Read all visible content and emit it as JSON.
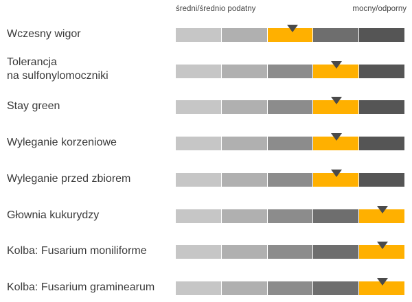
{
  "scale": {
    "left_label": "średni/średnio podatny",
    "right_label": "mocny/odporny"
  },
  "colors": {
    "segments": [
      "#c6c6c6",
      "#b0b0b0",
      "#8c8c8c",
      "#6e6e6e",
      "#555555"
    ],
    "highlight": "#ffb000",
    "marker": "#4a4a4a"
  },
  "chart_data": {
    "type": "table",
    "levels": 5,
    "rows": [
      {
        "label_lines": [
          "Wczesny wigor"
        ],
        "level": 3,
        "marker_position": 0.55
      },
      {
        "label_lines": [
          "Tolerancja",
          "na sulfonylomoczniki"
        ],
        "level": 4,
        "marker_position": 0.5
      },
      {
        "label_lines": [
          "Stay green"
        ],
        "level": 4,
        "marker_position": 0.5
      },
      {
        "label_lines": [
          "Wyleganie korzeniowe"
        ],
        "level": 4,
        "marker_position": 0.5
      },
      {
        "label_lines": [
          "Wyleganie przed zbiorem"
        ],
        "level": 4,
        "marker_position": 0.5
      },
      {
        "label_lines": [
          "Głownia kukurydzy"
        ],
        "level": 5,
        "marker_position": 0.5
      },
      {
        "label_lines": [
          "Kolba: Fusarium moniliforme"
        ],
        "level": 5,
        "marker_position": 0.5
      },
      {
        "label_lines": [
          "Kolba: Fusarium graminearum"
        ],
        "level": 5,
        "marker_position": 0.5
      }
    ]
  }
}
